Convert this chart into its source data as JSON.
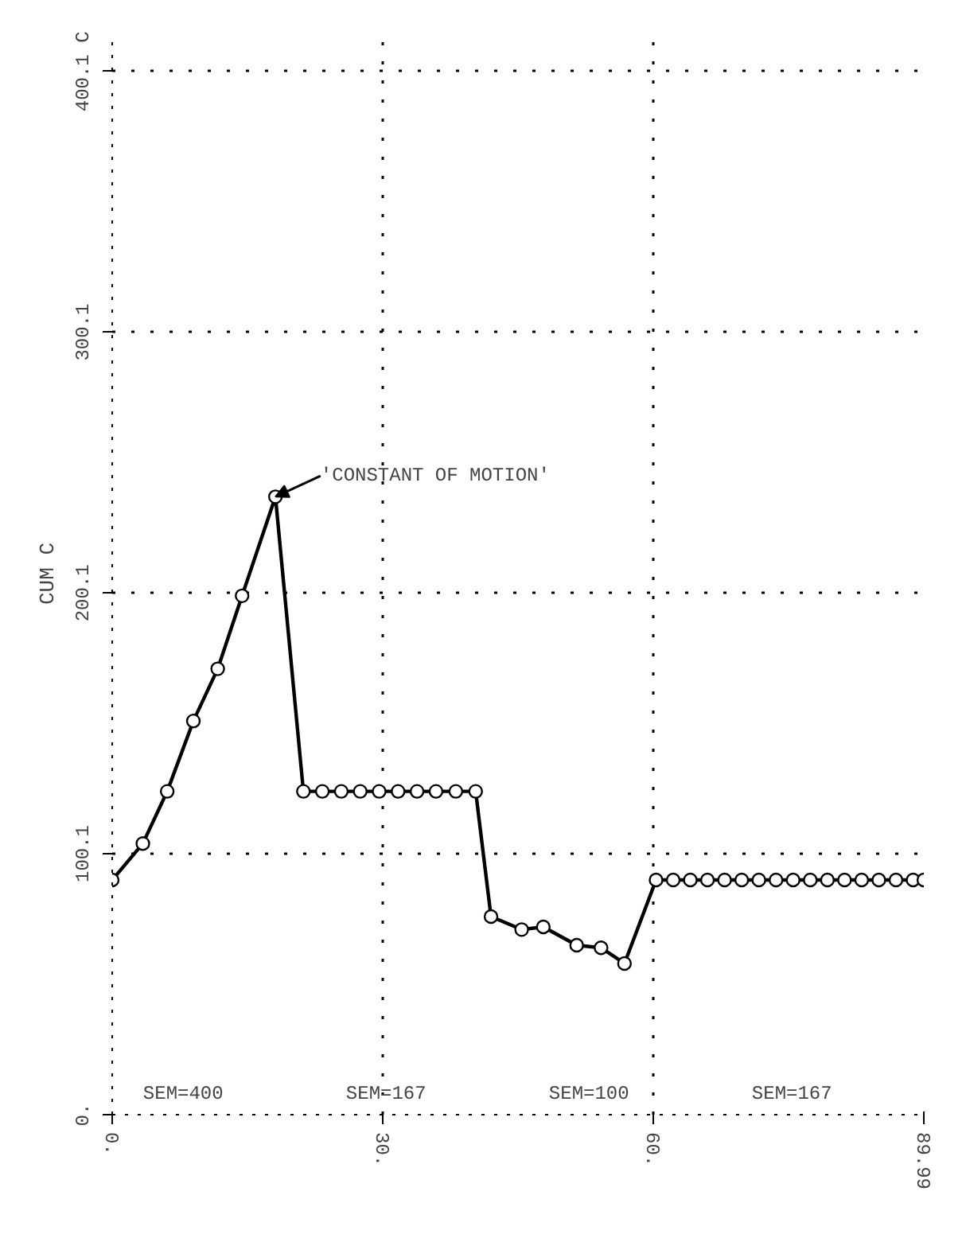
{
  "chart_data": {
    "type": "line",
    "ylabel": "CUM C",
    "x": [
      0,
      3.4,
      6.1,
      9,
      11.7,
      14.4,
      18.1,
      21.2,
      23.3,
      25.4,
      27.5,
      29.6,
      31.7,
      33.8,
      35.9,
      38.1,
      40.3,
      42,
      45.4,
      47.8,
      51.5,
      54.2,
      56.8,
      60.3,
      62.2,
      64.1,
      66,
      67.9,
      69.8,
      71.7,
      73.6,
      75.5,
      77.4,
      79.3,
      81.2,
      83.1,
      85,
      86.9,
      88.8,
      89.99
    ],
    "series": [
      {
        "color": "#000000",
        "values": [
          90,
          104,
          124,
          151,
          171,
          199,
          237,
          124,
          124,
          124,
          124,
          124,
          124,
          124,
          124,
          124,
          124,
          76,
          71,
          72,
          65,
          64,
          58,
          90,
          90,
          90,
          90,
          90,
          90,
          90,
          90,
          90,
          90,
          90,
          90,
          90,
          90,
          90,
          90,
          90
        ]
      }
    ],
    "xlim": [
      0,
      89.99
    ],
    "ylim": [
      0,
      415
    ],
    "xticks": [
      {
        "value": 0,
        "label": "0."
      },
      {
        "value": 30,
        "label": "30."
      },
      {
        "value": 60,
        "label": "60."
      },
      89.99
    ],
    "yticks": [
      {
        "value": 0,
        "label": "0."
      },
      100.1,
      200.1,
      300.1,
      {
        "value": 400.1,
        "label": "400.1 C"
      }
    ],
    "grid": true,
    "marker": "circle",
    "annotations": [
      {
        "text": "'CONSTANT OF MOTION'",
        "x": 18.1,
        "y": 237
      },
      "SEM=400",
      "SEM=167",
      "SEM=100",
      "SEM=167"
    ]
  }
}
